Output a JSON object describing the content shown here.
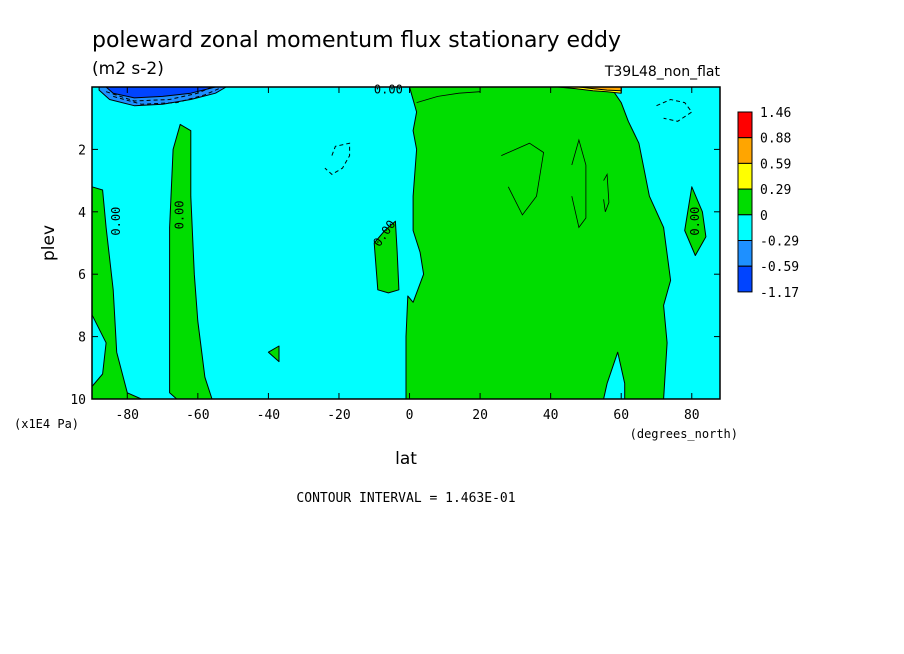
{
  "chart_data": {
    "type": "contour",
    "title": "poleward zonal momentum flux stationary eddy",
    "units": "(m2 s-2)",
    "run_label": "T39L48_non_flat",
    "xlabel": "lat",
    "xunits": "(degrees_north)",
    "ylabel": "plev",
    "yunits": "(x1E4 Pa)",
    "xlim": [
      -90,
      88
    ],
    "ylim": [
      10,
      0
    ],
    "x_ticks": [
      -80,
      -60,
      -40,
      -20,
      0,
      20,
      40,
      60,
      80
    ],
    "x_tick_labels": [
      "-80",
      "-60",
      "-40",
      "-20",
      "0",
      "20",
      "40",
      "60",
      "80"
    ],
    "y_ticks": [
      2,
      4,
      6,
      8,
      10
    ],
    "y_tick_labels": [
      "2",
      "4",
      "6",
      "8",
      "10"
    ],
    "contour_interval_text": "CONTOUR INTERVAL = 1.463E-01",
    "contour_labels": [
      {
        "text": "0.00",
        "lat": -83,
        "plev": 4.3,
        "rotate": -90
      },
      {
        "text": "0.00",
        "lat": -65,
        "plev": 4.1,
        "rotate": -90
      },
      {
        "text": "0.00",
        "lat": -7,
        "plev": 4.7,
        "rotate": -55
      },
      {
        "text": "0.00",
        "lat": -6,
        "plev": 0.1,
        "rotate": 0
      },
      {
        "text": "0.00",
        "lat": 81,
        "plev": 4.3,
        "rotate": -90
      }
    ],
    "legend": {
      "levels": [
        "1.46",
        "0.88",
        "0.59",
        "0.29",
        "0",
        "-0.29",
        "-0.59",
        "-1.17"
      ],
      "colors": [
        "#ff0000",
        "#ffa500",
        "#ffff00",
        "#00dd00",
        "#00ffff",
        "#1e90ff",
        "#0044ff"
      ]
    },
    "colors": {
      "positive": "#00dd00",
      "negative": "#00ffff",
      "strong_negative": "#1e90ff",
      "deep_negative": "#0044ff",
      "yellow": "#ffff00",
      "orange": "#ffa500"
    },
    "regions": {
      "positive_polygons": [
        [
          [
            -90,
            3.2
          ],
          [
            -87,
            3.3
          ],
          [
            -86,
            4.5
          ],
          [
            -84,
            6.5
          ],
          [
            -83,
            8.5
          ],
          [
            -80,
            9.8
          ],
          [
            -76,
            10
          ],
          [
            -90,
            10
          ],
          [
            -90,
            9.6
          ],
          [
            -87,
            9.2
          ],
          [
            -86,
            8.2
          ],
          [
            -90,
            7.3
          ]
        ],
        [
          [
            -68,
            9.8
          ],
          [
            -68,
            4.5
          ],
          [
            -67,
            2
          ],
          [
            -65,
            1.2
          ],
          [
            -62,
            1.4
          ],
          [
            -62,
            3.5
          ],
          [
            -61,
            6
          ],
          [
            -60,
            7.5
          ],
          [
            -58,
            9.3
          ],
          [
            -56,
            10
          ],
          [
            -66,
            10
          ]
        ],
        [
          [
            -1,
            10
          ],
          [
            -1,
            8
          ],
          [
            -0.5,
            6.7
          ],
          [
            1,
            6.9
          ],
          [
            4,
            6
          ],
          [
            3,
            5.3
          ],
          [
            1,
            4.6
          ],
          [
            1,
            3.5
          ],
          [
            2,
            2
          ],
          [
            1,
            1.4
          ],
          [
            2,
            0.8
          ],
          [
            0,
            0
          ],
          [
            57,
            0
          ],
          [
            60,
            0.5
          ],
          [
            62,
            1.1
          ],
          [
            65,
            1.8
          ],
          [
            68,
            3.5
          ],
          [
            72,
            4.5
          ],
          [
            74,
            6.2
          ],
          [
            72,
            7
          ],
          [
            73,
            8.2
          ],
          [
            72,
            10
          ],
          [
            61,
            10
          ],
          [
            61,
            9.5
          ],
          [
            59,
            8.5
          ],
          [
            56,
            9.5
          ],
          [
            55,
            10
          ]
        ],
        [
          [
            -9,
            6.5
          ],
          [
            -10,
            5
          ],
          [
            -7,
            4.6
          ],
          [
            -4,
            4.3
          ],
          [
            -3.5,
            5.3
          ],
          [
            -3,
            6.5
          ],
          [
            -6,
            6.6
          ]
        ],
        [
          [
            -40,
            8.5
          ],
          [
            -37,
            8.3
          ],
          [
            -37,
            8.8
          ]
        ],
        [
          [
            78,
            4.6
          ],
          [
            80,
            3.2
          ],
          [
            83,
            4
          ],
          [
            84,
            4.8
          ],
          [
            81,
            5.4
          ]
        ]
      ],
      "deep_negative_polygons": [
        [
          [
            -84,
            0.2
          ],
          [
            -78,
            0.35
          ],
          [
            -70,
            0.3
          ],
          [
            -62,
            0.2
          ],
          [
            -55,
            0
          ],
          [
            -86,
            0
          ]
        ]
      ],
      "strong_negative_polygons": [
        [
          [
            -88,
            0.1
          ],
          [
            -85,
            0.4
          ],
          [
            -78,
            0.6
          ],
          [
            -70,
            0.55
          ],
          [
            -62,
            0.4
          ],
          [
            -55,
            0.2
          ],
          [
            -52,
            0
          ],
          [
            -88,
            0
          ]
        ]
      ],
      "yellow_polygons": [
        [
          [
            42,
            0
          ],
          [
            47,
            0.05
          ],
          [
            52,
            0.12
          ],
          [
            56,
            0.15
          ],
          [
            60,
            0.2
          ],
          [
            60,
            0
          ],
          [
            42,
            0
          ]
        ]
      ],
      "orange_polygons": [
        [
          [
            48,
            0
          ],
          [
            52,
            0.05
          ],
          [
            56,
            0.1
          ],
          [
            60,
            0.12
          ],
          [
            60,
            0
          ]
        ]
      ]
    },
    "dashed_contours": [
      [
        [
          -84,
          0.3
        ],
        [
          -76,
          0.55
        ],
        [
          -66,
          0.5
        ],
        [
          -58,
          0.25
        ],
        [
          -54,
          0.05
        ]
      ],
      [
        [
          -86,
          0.15
        ],
        [
          -78,
          0.45
        ],
        [
          -68,
          0.4
        ],
        [
          -60,
          0.2
        ],
        [
          -56,
          0
        ]
      ],
      [
        [
          -22,
          2.2
        ],
        [
          -21,
          1.9
        ],
        [
          -17,
          1.8
        ],
        [
          -17,
          2.2
        ],
        [
          -19,
          2.6
        ],
        [
          -22,
          2.8
        ],
        [
          -24,
          2.6
        ]
      ],
      [
        [
          70,
          0.6
        ],
        [
          74,
          0.4
        ],
        [
          78,
          0.5
        ],
        [
          80,
          0.8
        ],
        [
          76,
          1.1
        ],
        [
          72,
          1.0
        ]
      ]
    ],
    "solid_thin_contours": [
      [
        [
          26,
          2.2
        ],
        [
          34,
          1.8
        ],
        [
          38,
          2.1
        ],
        [
          36,
          3.5
        ],
        [
          32,
          4.1
        ],
        [
          28,
          3.2
        ]
      ],
      [
        [
          46,
          2.5
        ],
        [
          48,
          1.7
        ],
        [
          50,
          2.5
        ],
        [
          50,
          4.2
        ],
        [
          48,
          4.5
        ],
        [
          46,
          3.5
        ]
      ],
      [
        [
          55,
          3
        ],
        [
          56,
          2.8
        ],
        [
          56.5,
          3.7
        ],
        [
          55.5,
          4
        ],
        [
          55,
          3.6
        ]
      ],
      [
        [
          2,
          0.5
        ],
        [
          8,
          0.3
        ],
        [
          14,
          0.2
        ],
        [
          20,
          0.15
        ]
      ]
    ]
  }
}
